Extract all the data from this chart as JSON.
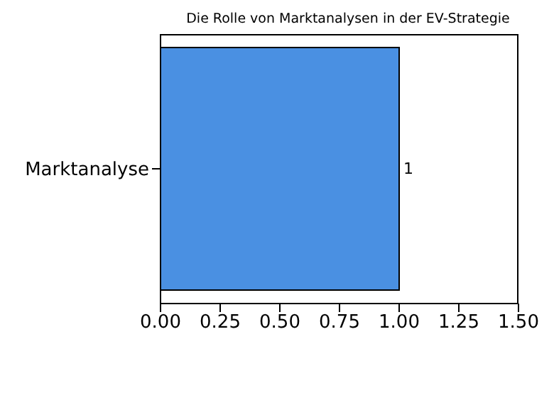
{
  "chart_data": {
    "type": "bar",
    "orientation": "horizontal",
    "title": "Die Rolle von Marktanalysen in der EV-Strategie",
    "categories": [
      "Marktanalyse"
    ],
    "values": [
      1
    ],
    "color": "#4a90e2",
    "data_labels": true,
    "xlim": [
      0,
      1.5
    ],
    "xticks": [
      {
        "value": 0,
        "label": "0.00"
      },
      {
        "value": 0.25,
        "label": "0.25"
      },
      {
        "value": 0.5,
        "label": "0.50"
      },
      {
        "value": 0.75,
        "label": "0.75"
      },
      {
        "value": 1,
        "label": "1.00"
      },
      {
        "value": 1.25,
        "label": "1.25"
      },
      {
        "value": 1.5,
        "label": "1.50"
      }
    ],
    "grid": false,
    "legend": false
  }
}
